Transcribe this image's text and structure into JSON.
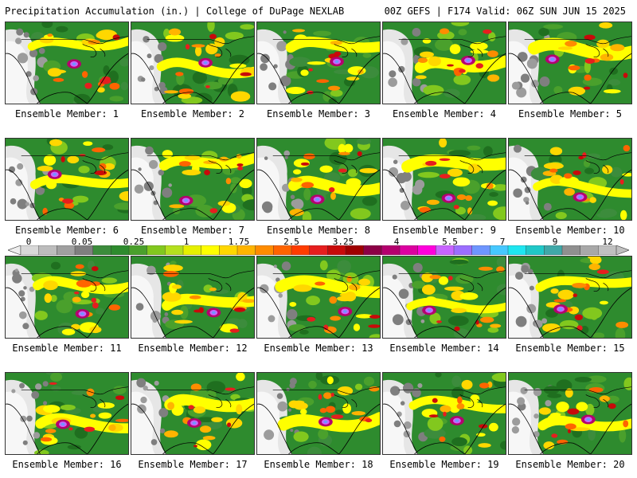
{
  "header": {
    "title_left": "Precipitation Accumulation (in.) | College of DuPage NEXLAB",
    "title_right": "00Z GEFS | F174 Valid: 06Z SUN JUN 15 2025"
  },
  "colorbar": {
    "tick_labels": [
      "0",
      "0.05",
      "0.25",
      "1",
      "1.75",
      "2.5",
      "3.25",
      "4",
      "5.5",
      "7",
      "9",
      "12"
    ],
    "colors": [
      "#d8d8d8",
      "#bcbcbc",
      "#a0a0a0",
      "#7f7f7f",
      "#3c8c3c",
      "#2e8b2e",
      "#4aa02c",
      "#82c81e",
      "#b4e01e",
      "#e6f000",
      "#ffff00",
      "#ffd700",
      "#ffb400",
      "#ff8c00",
      "#ff6400",
      "#ff3c00",
      "#e61e1e",
      "#c80a0a",
      "#a00000",
      "#8c0046",
      "#b4006e",
      "#dc00a0",
      "#ff00dc",
      "#c864ff",
      "#9b6eff",
      "#6e96ff",
      "#46c8ff",
      "#1ee6f0",
      "#20c8c8",
      "#40a8a8",
      "#909090",
      "#a8a8a8",
      "#c0c0c0"
    ]
  },
  "panels": [
    {
      "label": "Ensemble Member: 1"
    },
    {
      "label": "Ensemble Member: 2"
    },
    {
      "label": "Ensemble Member: 3"
    },
    {
      "label": "Ensemble Member: 4"
    },
    {
      "label": "Ensemble Member: 5"
    },
    {
      "label": "Ensemble Member: 6"
    },
    {
      "label": "Ensemble Member: 7"
    },
    {
      "label": "Ensemble Member: 8"
    },
    {
      "label": "Ensemble Member: 9"
    },
    {
      "label": "Ensemble Member: 10"
    },
    {
      "label": "Ensemble Member: 11"
    },
    {
      "label": "Ensemble Member: 12"
    },
    {
      "label": "Ensemble Member: 13"
    },
    {
      "label": "Ensemble Member: 14"
    },
    {
      "label": "Ensemble Member: 15"
    },
    {
      "label": "Ensemble Member: 16"
    },
    {
      "label": "Ensemble Member: 17"
    },
    {
      "label": "Ensemble Member: 18"
    },
    {
      "label": "Ensemble Member: 19"
    },
    {
      "label": "Ensemble Member: 20"
    }
  ]
}
